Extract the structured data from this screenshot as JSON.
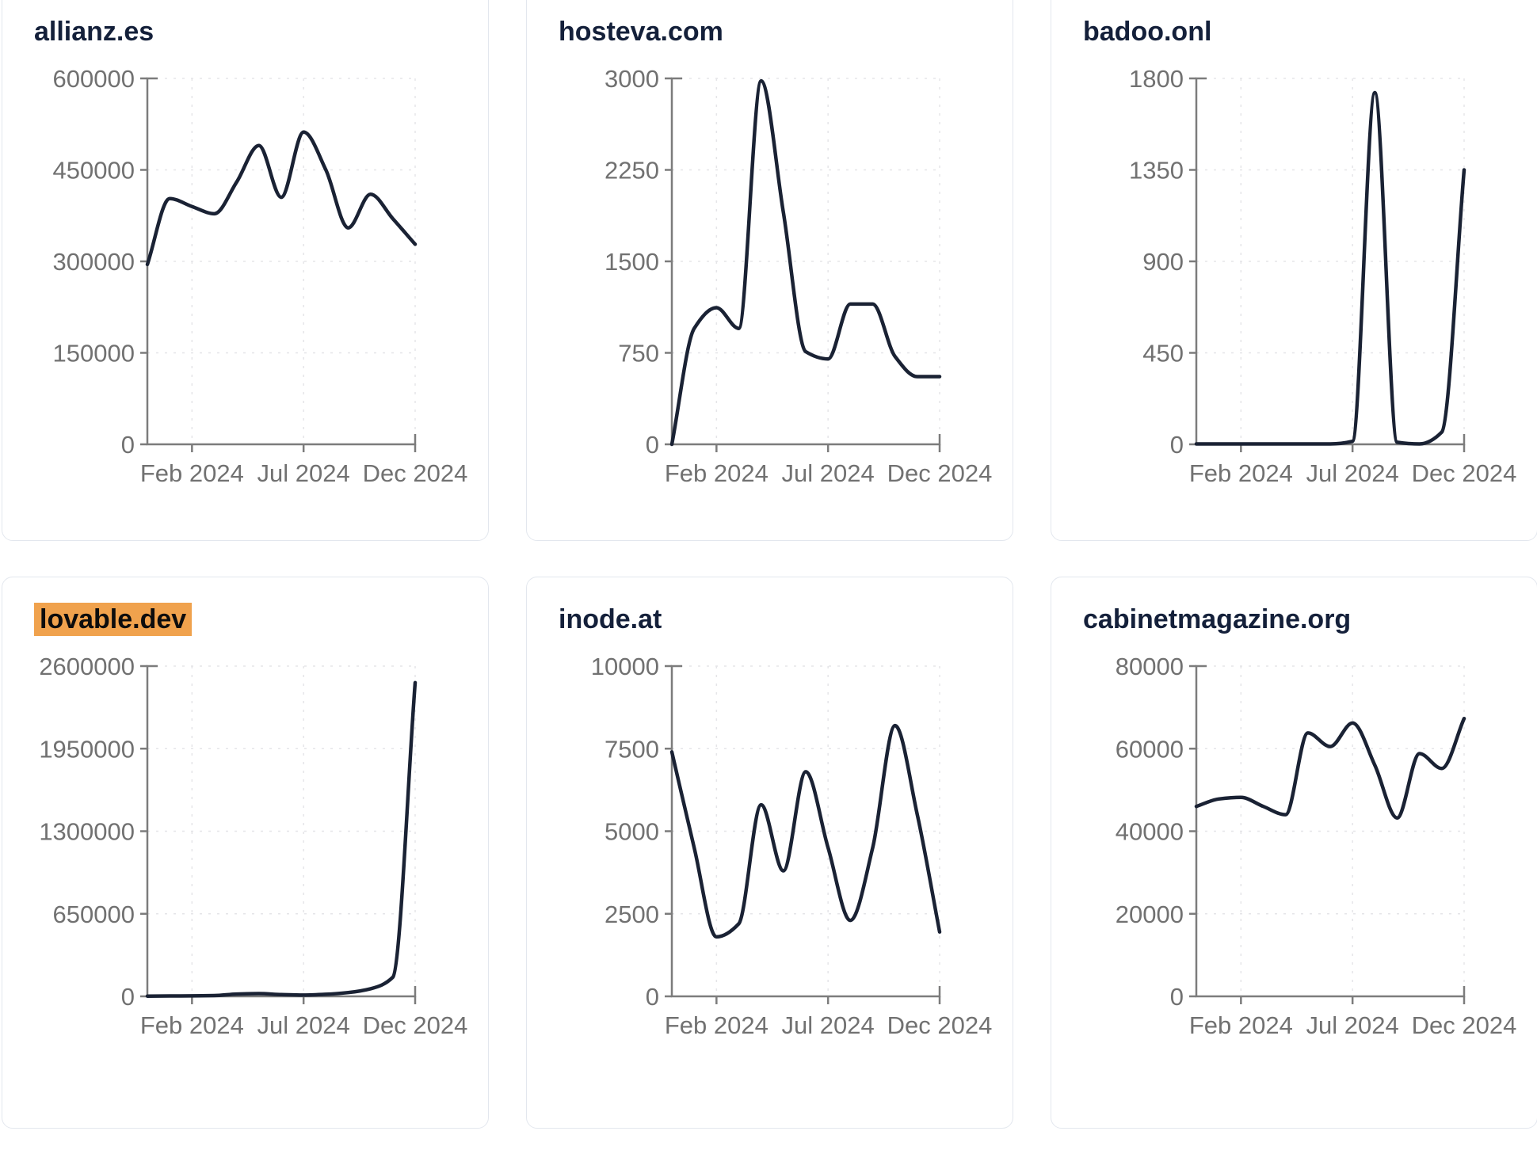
{
  "style": {
    "page_background": "#ffffff",
    "card_background": "#ffffff",
    "card_border": "#e3e7ee",
    "title_color": "#14203a",
    "line_color": "#1a2234",
    "axis_color": "#7c7c7c",
    "tick_label_color": "#717171",
    "grid_color": "#e5e5e8",
    "highlight_color": "#f0a24d",
    "highlight_text_color": "#0d0d0d"
  },
  "chart_data": [
    {
      "type": "line",
      "title": "allianz.es",
      "highlighted": false,
      "x": [
        "Dec 2023",
        "Jan 2024",
        "Feb 2024",
        "Mar 2024",
        "Apr 2024",
        "May 2024",
        "Jun 2024",
        "Jul 2024",
        "Aug 2024",
        "Sep 2024",
        "Oct 2024",
        "Nov 2024",
        "Dec 2024"
      ],
      "values": [
        295000,
        403000,
        390000,
        378000,
        430000,
        490000,
        405000,
        512000,
        450000,
        355000,
        410000,
        370000,
        328000
      ],
      "ylim": [
        0,
        600000
      ],
      "y_ticks": [
        0,
        150000,
        300000,
        450000,
        600000
      ],
      "x_tick_labels": [
        "Feb 2024",
        "Jul 2024",
        "Dec 2024"
      ],
      "x_tick_indices": [
        2,
        7,
        12
      ],
      "xlabel": "",
      "ylabel": "",
      "grid": true,
      "legend": "none"
    },
    {
      "type": "line",
      "title": "hosteva.com",
      "highlighted": false,
      "x": [
        "Dec 2023",
        "Jan 2024",
        "Feb 2024",
        "Mar 2024",
        "Apr 2024",
        "May 2024",
        "Jun 2024",
        "Jul 2024",
        "Aug 2024",
        "Sep 2024",
        "Oct 2024",
        "Nov 2024",
        "Dec 2024"
      ],
      "values": [
        0,
        950,
        1120,
        950,
        2980,
        1900,
        760,
        700,
        1150,
        1150,
        720,
        555,
        555
      ],
      "ylim": [
        0,
        3000
      ],
      "y_ticks": [
        0,
        750,
        1500,
        2250,
        3000
      ],
      "x_tick_labels": [
        "Feb 2024",
        "Jul 2024",
        "Dec 2024"
      ],
      "x_tick_indices": [
        2,
        7,
        12
      ],
      "xlabel": "",
      "ylabel": "",
      "grid": true,
      "legend": "none"
    },
    {
      "type": "line",
      "title": "badoo.onl",
      "highlighted": false,
      "x": [
        "Dec 2023",
        "Jan 2024",
        "Feb 2024",
        "Mar 2024",
        "Apr 2024",
        "May 2024",
        "Jun 2024",
        "Jul 2024",
        "Aug 2024",
        "Sep 2024",
        "Oct 2024",
        "Nov 2024",
        "Dec 2024"
      ],
      "values": [
        2,
        2,
        2,
        2,
        2,
        2,
        2,
        15,
        1730,
        10,
        2,
        60,
        1350
      ],
      "ylim": [
        0,
        1800
      ],
      "y_ticks": [
        0,
        450,
        900,
        1350,
        1800
      ],
      "x_tick_labels": [
        "Feb 2024",
        "Jul 2024",
        "Dec 2024"
      ],
      "x_tick_indices": [
        2,
        7,
        12
      ],
      "xlabel": "",
      "ylabel": "",
      "grid": true,
      "legend": "none"
    },
    {
      "type": "line",
      "title": "lovable.dev",
      "highlighted": true,
      "x": [
        "Dec 2023",
        "Jan 2024",
        "Feb 2024",
        "Mar 2024",
        "Apr 2024",
        "May 2024",
        "Jun 2024",
        "Jul 2024",
        "Aug 2024",
        "Sep 2024",
        "Oct 2024",
        "Nov 2024",
        "Dec 2024"
      ],
      "values": [
        2000,
        3000,
        4000,
        6000,
        18000,
        22000,
        14000,
        10000,
        16000,
        30000,
        60000,
        150000,
        2470000
      ],
      "ylim": [
        0,
        2600000
      ],
      "y_ticks": [
        0,
        650000,
        1300000,
        1950000,
        2600000
      ],
      "x_tick_labels": [
        "Feb 2024",
        "Jul 2024",
        "Dec 2024"
      ],
      "x_tick_indices": [
        2,
        7,
        12
      ],
      "xlabel": "",
      "ylabel": "",
      "grid": true,
      "legend": "none"
    },
    {
      "type": "line",
      "title": "inode.at",
      "highlighted": false,
      "x": [
        "Dec 2023",
        "Jan 2024",
        "Feb 2024",
        "Mar 2024",
        "Apr 2024",
        "May 2024",
        "Jun 2024",
        "Jul 2024",
        "Aug 2024",
        "Sep 2024",
        "Oct 2024",
        "Nov 2024",
        "Dec 2024"
      ],
      "values": [
        7400,
        4500,
        1800,
        2200,
        5800,
        3800,
        6800,
        4500,
        2300,
        4500,
        8200,
        5500,
        1950
      ],
      "ylim": [
        0,
        10000
      ],
      "y_ticks": [
        0,
        2500,
        5000,
        7500,
        10000
      ],
      "x_tick_labels": [
        "Feb 2024",
        "Jul 2024",
        "Dec 2024"
      ],
      "x_tick_indices": [
        2,
        7,
        12
      ],
      "xlabel": "",
      "ylabel": "",
      "grid": true,
      "legend": "none"
    },
    {
      "type": "line",
      "title": "cabinetmagazine.org",
      "highlighted": false,
      "x": [
        "Dec 2023",
        "Jan 2024",
        "Feb 2024",
        "Mar 2024",
        "Apr 2024",
        "May 2024",
        "Jun 2024",
        "Jul 2024",
        "Aug 2024",
        "Sep 2024",
        "Oct 2024",
        "Nov 2024",
        "Dec 2024"
      ],
      "values": [
        46000,
        47800,
        48200,
        46000,
        44000,
        63800,
        60500,
        66200,
        56000,
        43200,
        58800,
        55200,
        67300
      ],
      "ylim": [
        0,
        80000
      ],
      "y_ticks": [
        0,
        20000,
        40000,
        60000,
        80000
      ],
      "x_tick_labels": [
        "Feb 2024",
        "Jul 2024",
        "Dec 2024"
      ],
      "x_tick_indices": [
        2,
        7,
        12
      ],
      "xlabel": "",
      "ylabel": "",
      "grid": true,
      "legend": "none"
    }
  ]
}
